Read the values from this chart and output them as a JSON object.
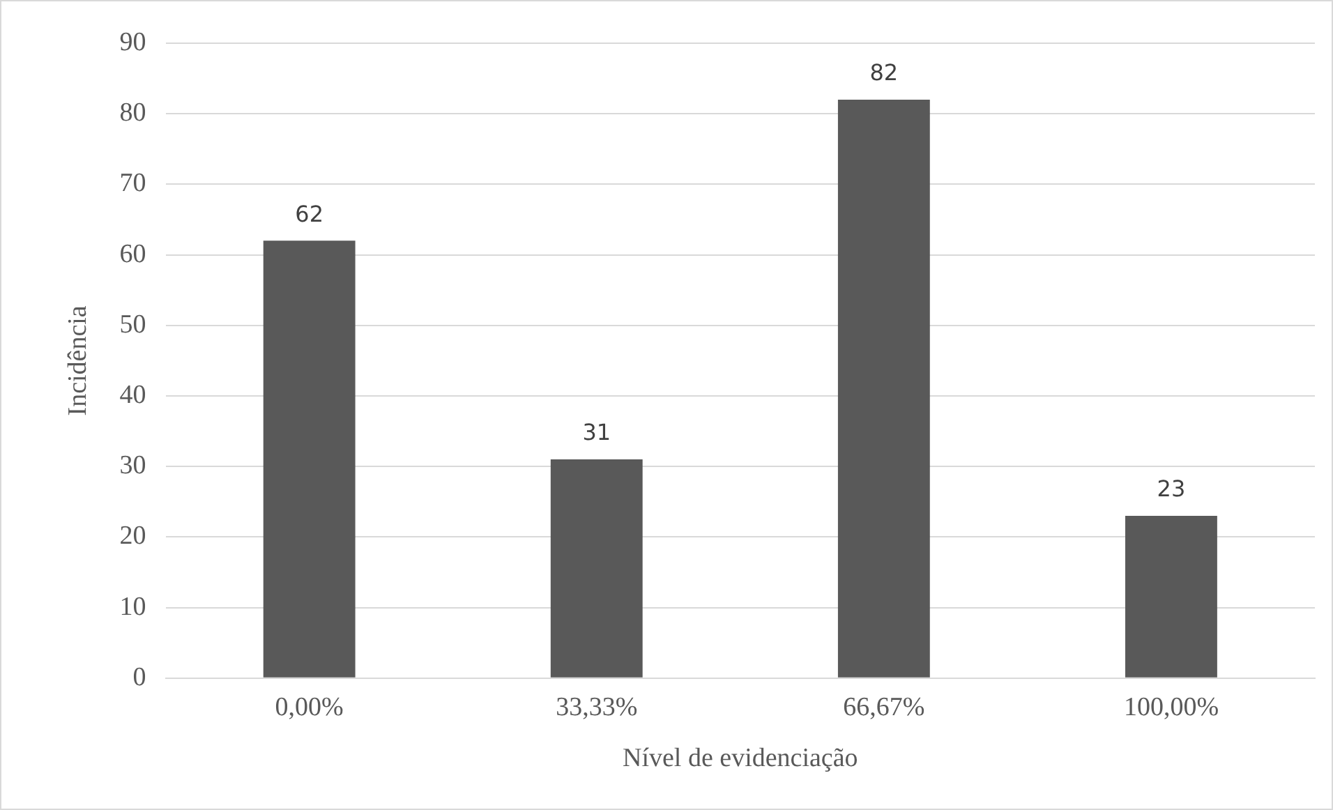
{
  "chart_data": {
    "type": "bar",
    "xlabel": "Nível de evidenciação",
    "ylabel": "Incidência",
    "categories": [
      "0,00%",
      "33,33%",
      "66,67%",
      "100,00%"
    ],
    "values": [
      62,
      31,
      82,
      23
    ],
    "color": "#595959",
    "ylim": [
      0,
      90
    ],
    "yticks": [
      0,
      10,
      20,
      30,
      40,
      50,
      60,
      70,
      80,
      90
    ],
    "grid": "y",
    "legend": false,
    "data_labels": true
  }
}
